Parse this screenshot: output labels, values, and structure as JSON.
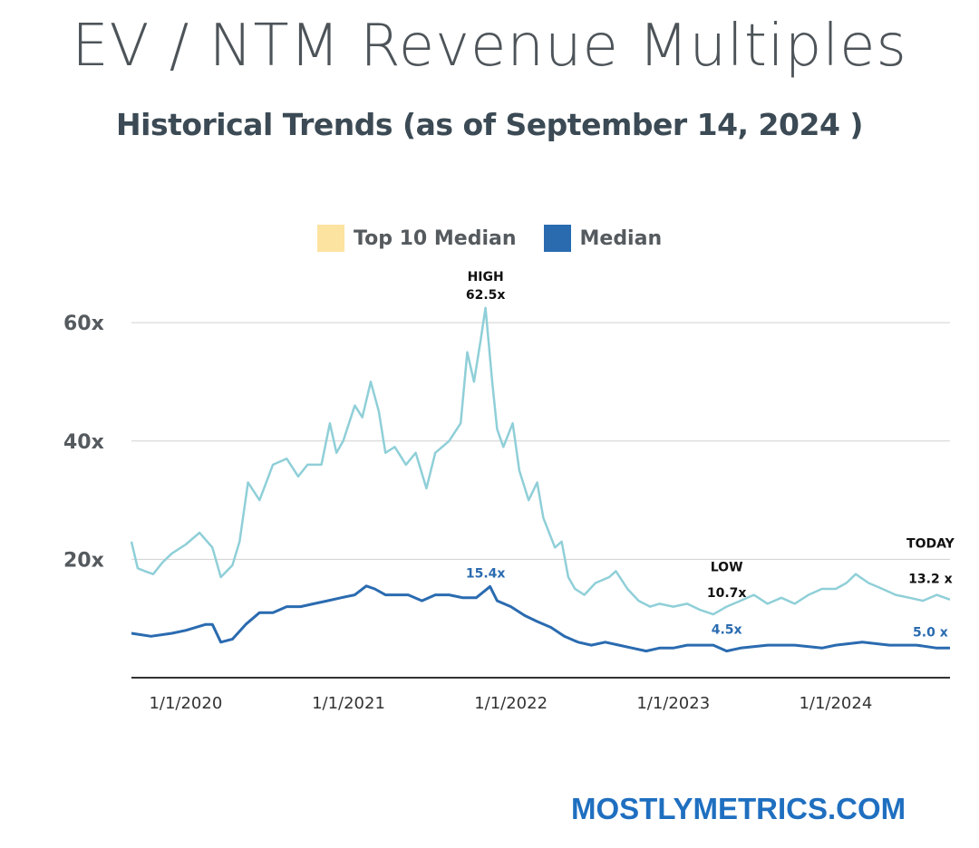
{
  "header": {
    "title": "EV / NTM Revenue Multiples",
    "subtitle": "Historical Trends (as of  September 14, 2024 )"
  },
  "footer": {
    "brand": "MOSTLYMETRICS.COM"
  },
  "colors": {
    "top10": "#8fcfd8",
    "median": "#2a6bb0",
    "legend_top10": "#fde3a0",
    "legend_median": "#2a6bb0"
  },
  "chart_data": {
    "type": "line",
    "title": "EV / NTM Revenue Multiples",
    "x_tick_labels": [
      "1/1/2020",
      "1/1/2021",
      "1/1/2022",
      "1/1/2023",
      "1/1/2024"
    ],
    "y_tick_labels": [
      "20x",
      "40x",
      "60x"
    ],
    "ylim": [
      0,
      64
    ],
    "grid": true,
    "legend": "top-center",
    "series": [
      {
        "name": "Top 10 Median",
        "points": [
          [
            "2019-09-01",
            23
          ],
          [
            "2019-09-15",
            18.5
          ],
          [
            "2019-10-01",
            18
          ],
          [
            "2019-10-20",
            17.5
          ],
          [
            "2019-11-10",
            19.5
          ],
          [
            "2019-12-01",
            21
          ],
          [
            "2020-01-01",
            22.5
          ],
          [
            "2020-02-01",
            24.5
          ],
          [
            "2020-03-01",
            22
          ],
          [
            "2020-03-20",
            17
          ],
          [
            "2020-04-15",
            19
          ],
          [
            "2020-05-01",
            23
          ],
          [
            "2020-05-20",
            33
          ],
          [
            "2020-06-15",
            30
          ],
          [
            "2020-07-15",
            36
          ],
          [
            "2020-08-15",
            37
          ],
          [
            "2020-09-10",
            34
          ],
          [
            "2020-10-01",
            36
          ],
          [
            "2020-11-01",
            36
          ],
          [
            "2020-11-20",
            43
          ],
          [
            "2020-12-05",
            38
          ],
          [
            "2020-12-20",
            40
          ],
          [
            "2021-01-15",
            46
          ],
          [
            "2021-02-01",
            44
          ],
          [
            "2021-02-20",
            50
          ],
          [
            "2021-03-10",
            45
          ],
          [
            "2021-03-25",
            38
          ],
          [
            "2021-04-15",
            39
          ],
          [
            "2021-05-10",
            36
          ],
          [
            "2021-06-01",
            38
          ],
          [
            "2021-06-25",
            32
          ],
          [
            "2021-07-15",
            38
          ],
          [
            "2021-08-15",
            40
          ],
          [
            "2021-09-10",
            43
          ],
          [
            "2021-09-25",
            55
          ],
          [
            "2021-10-10",
            50
          ],
          [
            "2021-10-25",
            57
          ],
          [
            "2021-11-05",
            62.5
          ],
          [
            "2021-11-20",
            50
          ],
          [
            "2021-12-01",
            42
          ],
          [
            "2021-12-15",
            39
          ],
          [
            "2022-01-05",
            43
          ],
          [
            "2022-01-20",
            35
          ],
          [
            "2022-02-10",
            30
          ],
          [
            "2022-03-01",
            33
          ],
          [
            "2022-03-15",
            27
          ],
          [
            "2022-04-10",
            22
          ],
          [
            "2022-04-25",
            23
          ],
          [
            "2022-05-10",
            17
          ],
          [
            "2022-05-25",
            15
          ],
          [
            "2022-06-15",
            14
          ],
          [
            "2022-07-10",
            16
          ],
          [
            "2022-08-10",
            17
          ],
          [
            "2022-08-25",
            18
          ],
          [
            "2022-09-20",
            15
          ],
          [
            "2022-10-15",
            13
          ],
          [
            "2022-11-10",
            12
          ],
          [
            "2022-12-01",
            12.5
          ],
          [
            "2023-01-01",
            12
          ],
          [
            "2023-02-01",
            12.5
          ],
          [
            "2023-03-01",
            11.5
          ],
          [
            "2023-04-01",
            10.7
          ],
          [
            "2023-05-01",
            12
          ],
          [
            "2023-06-01",
            13
          ],
          [
            "2023-07-01",
            14
          ],
          [
            "2023-08-01",
            12.5
          ],
          [
            "2023-09-01",
            13.5
          ],
          [
            "2023-10-01",
            12.5
          ],
          [
            "2023-11-01",
            14
          ],
          [
            "2023-12-01",
            15
          ],
          [
            "2024-01-01",
            15
          ],
          [
            "2024-01-25",
            16
          ],
          [
            "2024-02-15",
            17.5
          ],
          [
            "2024-03-15",
            16
          ],
          [
            "2024-04-15",
            15
          ],
          [
            "2024-05-15",
            14
          ],
          [
            "2024-06-15",
            13.5
          ],
          [
            "2024-07-15",
            13
          ],
          [
            "2024-08-15",
            14
          ],
          [
            "2024-09-14",
            13.2
          ]
        ]
      },
      {
        "name": "Median",
        "points": [
          [
            "2019-09-01",
            7.5
          ],
          [
            "2019-10-15",
            7
          ],
          [
            "2019-12-01",
            7.5
          ],
          [
            "2020-01-01",
            8
          ],
          [
            "2020-02-15",
            9
          ],
          [
            "2020-03-01",
            9
          ],
          [
            "2020-03-20",
            6
          ],
          [
            "2020-04-15",
            6.5
          ],
          [
            "2020-05-15",
            9
          ],
          [
            "2020-06-15",
            11
          ],
          [
            "2020-07-15",
            11
          ],
          [
            "2020-08-15",
            12
          ],
          [
            "2020-09-15",
            12
          ],
          [
            "2020-10-15",
            12.5
          ],
          [
            "2020-11-15",
            13
          ],
          [
            "2020-12-15",
            13.5
          ],
          [
            "2021-01-15",
            14
          ],
          [
            "2021-02-10",
            15.5
          ],
          [
            "2021-03-01",
            15
          ],
          [
            "2021-03-25",
            14
          ],
          [
            "2021-04-15",
            14
          ],
          [
            "2021-05-15",
            14
          ],
          [
            "2021-06-15",
            13
          ],
          [
            "2021-07-15",
            14
          ],
          [
            "2021-08-15",
            14
          ],
          [
            "2021-09-15",
            13.5
          ],
          [
            "2021-10-15",
            13.5
          ],
          [
            "2021-11-15",
            15.4
          ],
          [
            "2021-12-01",
            13
          ],
          [
            "2022-01-01",
            12
          ],
          [
            "2022-02-01",
            10.5
          ],
          [
            "2022-03-01",
            9.5
          ],
          [
            "2022-04-01",
            8.5
          ],
          [
            "2022-05-01",
            7
          ],
          [
            "2022-06-01",
            6
          ],
          [
            "2022-07-01",
            5.5
          ],
          [
            "2022-08-01",
            6
          ],
          [
            "2022-09-01",
            5.5
          ],
          [
            "2022-10-01",
            5
          ],
          [
            "2022-11-01",
            4.5
          ],
          [
            "2022-12-01",
            5
          ],
          [
            "2023-01-01",
            5
          ],
          [
            "2023-02-01",
            5.5
          ],
          [
            "2023-03-01",
            5.5
          ],
          [
            "2023-04-01",
            5.5
          ],
          [
            "2023-05-01",
            4.5
          ],
          [
            "2023-06-01",
            5
          ],
          [
            "2023-08-01",
            5.5
          ],
          [
            "2023-10-01",
            5.5
          ],
          [
            "2023-12-01",
            5
          ],
          [
            "2024-01-01",
            5.5
          ],
          [
            "2024-03-01",
            6
          ],
          [
            "2024-05-01",
            5.5
          ],
          [
            "2024-07-01",
            5.5
          ],
          [
            "2024-08-15",
            5
          ],
          [
            "2024-09-14",
            5.0
          ]
        ]
      }
    ],
    "annotations": [
      {
        "lines": [
          "HIGH",
          "62.5x"
        ],
        "color": "#111111",
        "x": "2021-11-05",
        "y": 62.5,
        "anchor": "above"
      },
      {
        "lines": [
          "15.4x"
        ],
        "color": "#2a6bb0",
        "x": "2021-11-05",
        "y": 15.4,
        "anchor": "above"
      },
      {
        "lines": [
          "LOW"
        ],
        "color": "#111111",
        "x": "2023-05-01",
        "y": 18,
        "anchor": "label"
      },
      {
        "lines": [
          "10.7x"
        ],
        "color": "#111111",
        "x": "2023-05-01",
        "y": 13.6,
        "anchor": "label"
      },
      {
        "lines": [
          "4.5x"
        ],
        "color": "#2a6bb0",
        "x": "2023-05-01",
        "y": 7.4,
        "anchor": "label"
      },
      {
        "lines": [
          "TODAY"
        ],
        "color": "#111111",
        "x": "2024-08-01",
        "y": 22,
        "anchor": "label"
      },
      {
        "lines": [
          "13.2 x"
        ],
        "color": "#111111",
        "x": "2024-08-01",
        "y": 16,
        "anchor": "label"
      },
      {
        "lines": [
          "5.0 x"
        ],
        "color": "#2a6bb0",
        "x": "2024-08-01",
        "y": 7,
        "anchor": "label"
      }
    ]
  }
}
